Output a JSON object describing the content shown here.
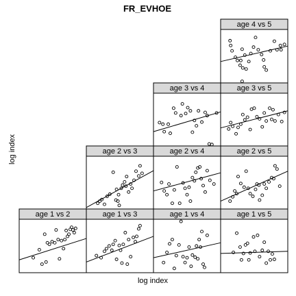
{
  "chart_data": {
    "type": "scatter",
    "title": "FR_EVHOE",
    "xlabel": "log index",
    "ylabel": "log index",
    "strip_color": "#d9d9d9",
    "grid": false,
    "panels": [
      {
        "label": "age 4 vs 5",
        "row": 0,
        "col": 3,
        "points": [
          [
            0.14,
            0.79
          ],
          [
            0.15,
            0.7
          ],
          [
            0.17,
            0.6
          ],
          [
            0.22,
            0.48
          ],
          [
            0.25,
            0.42
          ],
          [
            0.29,
            0.33
          ],
          [
            0.32,
            0.63
          ],
          [
            0.36,
            0.52
          ],
          [
            0.3,
            0.42
          ],
          [
            0.33,
            0.28
          ],
          [
            0.38,
            0.26
          ],
          [
            0.42,
            0.4
          ],
          [
            0.45,
            0.55
          ],
          [
            0.49,
            0.67
          ],
          [
            0.52,
            0.85
          ],
          [
            0.56,
            0.62
          ],
          [
            0.61,
            0.53
          ],
          [
            0.64,
            0.43
          ],
          [
            0.65,
            0.3
          ],
          [
            0.68,
            0.24
          ],
          [
            0.74,
            0.6
          ],
          [
            0.8,
            0.78
          ],
          [
            0.84,
            0.62
          ],
          [
            0.89,
            0.7
          ],
          [
            0.9,
            0.62
          ],
          [
            0.95,
            0.72
          ],
          [
            0.32,
            0.03
          ]
        ],
        "line": [
          [
            0.0,
            0.4
          ],
          [
            1.0,
            0.69
          ]
        ]
      },
      {
        "label": "age 3 vs 4",
        "row": 1,
        "col": 2,
        "points": [
          [
            0.09,
            0.45
          ],
          [
            0.14,
            0.42
          ],
          [
            0.16,
            0.28
          ],
          [
            0.22,
            0.42
          ],
          [
            0.25,
            0.25
          ],
          [
            0.3,
            0.72
          ],
          [
            0.33,
            0.63
          ],
          [
            0.41,
            0.58
          ],
          [
            0.43,
            0.8
          ],
          [
            0.48,
            0.62
          ],
          [
            0.51,
            0.73
          ],
          [
            0.55,
            0.67
          ],
          [
            0.58,
            0.27
          ],
          [
            0.61,
            0.49
          ],
          [
            0.64,
            0.39
          ],
          [
            0.67,
            0.67
          ],
          [
            0.72,
            0.46
          ],
          [
            0.77,
            0.64
          ],
          [
            0.8,
            0.58
          ],
          [
            0.83,
            0.05
          ],
          [
            0.87,
            0.04
          ],
          [
            0.94,
            0.63
          ]
        ],
        "line": [
          [
            0.0,
            0.28
          ],
          [
            1.0,
            0.65
          ]
        ]
      },
      {
        "label": "age 3 vs 5",
        "row": 1,
        "col": 3,
        "points": [
          [
            0.12,
            0.33
          ],
          [
            0.15,
            0.45
          ],
          [
            0.18,
            0.38
          ],
          [
            0.23,
            0.24
          ],
          [
            0.26,
            0.36
          ],
          [
            0.3,
            0.42
          ],
          [
            0.33,
            0.6
          ],
          [
            0.36,
            0.5
          ],
          [
            0.4,
            0.55
          ],
          [
            0.44,
            0.32
          ],
          [
            0.46,
            0.7
          ],
          [
            0.5,
            0.72
          ],
          [
            0.54,
            0.56
          ],
          [
            0.58,
            0.52
          ],
          [
            0.62,
            0.37
          ],
          [
            0.65,
            0.63
          ],
          [
            0.68,
            0.48
          ],
          [
            0.73,
            0.72
          ],
          [
            0.76,
            0.51
          ],
          [
            0.78,
            0.69
          ],
          [
            0.81,
            0.48
          ],
          [
            0.86,
            0.6
          ],
          [
            0.91,
            0.47
          ],
          [
            0.95,
            0.64
          ]
        ],
        "line": [
          [
            0.0,
            0.35
          ],
          [
            1.0,
            0.67
          ]
        ]
      },
      {
        "label": "age 2 vs 3",
        "row": 2,
        "col": 1,
        "points": [
          [
            0.17,
            0.12
          ],
          [
            0.2,
            0.16
          ],
          [
            0.23,
            0.19
          ],
          [
            0.27,
            0.1
          ],
          [
            0.31,
            0.25
          ],
          [
            0.35,
            0.29
          ],
          [
            0.4,
            0.7
          ],
          [
            0.44,
            0.18
          ],
          [
            0.45,
            0.38
          ],
          [
            0.48,
            0.28
          ],
          [
            0.49,
            0.08
          ],
          [
            0.52,
            0.4
          ],
          [
            0.54,
            0.46
          ],
          [
            0.57,
            0.52
          ],
          [
            0.59,
            0.44
          ],
          [
            0.6,
            0.62
          ],
          [
            0.63,
            0.33
          ],
          [
            0.66,
            0.48
          ],
          [
            0.68,
            0.4
          ],
          [
            0.71,
            0.55
          ],
          [
            0.74,
            0.72
          ],
          [
            0.78,
            0.63
          ],
          [
            0.8,
            0.82
          ],
          [
            0.83,
            0.68
          ],
          [
            0.47,
            0.16
          ]
        ],
        "line": [
          [
            0.0,
            0.04
          ],
          [
            1.0,
            0.73
          ]
        ]
      },
      {
        "label": "age 2 vs 4",
        "row": 2,
        "col": 2,
        "points": [
          [
            0.12,
            0.51
          ],
          [
            0.16,
            0.35
          ],
          [
            0.2,
            0.28
          ],
          [
            0.23,
            0.48
          ],
          [
            0.28,
            0.12
          ],
          [
            0.31,
            0.37
          ],
          [
            0.35,
            0.8
          ],
          [
            0.39,
            0.12
          ],
          [
            0.44,
            0.5
          ],
          [
            0.47,
            0.4
          ],
          [
            0.5,
            0.28
          ],
          [
            0.53,
            0.42
          ],
          [
            0.55,
            0.16
          ],
          [
            0.58,
            0.6
          ],
          [
            0.61,
            0.54
          ],
          [
            0.63,
            0.7
          ],
          [
            0.66,
            0.78
          ],
          [
            0.69,
            0.8
          ],
          [
            0.71,
            0.58
          ],
          [
            0.74,
            0.45
          ],
          [
            0.77,
            0.33
          ],
          [
            0.8,
            0.73
          ],
          [
            0.84,
            0.55
          ],
          [
            0.9,
            0.48
          ]
        ],
        "line": [
          [
            0.0,
            0.35
          ],
          [
            1.0,
            0.69
          ]
        ]
      },
      {
        "label": "age 2 vs 5",
        "row": 2,
        "col": 3,
        "points": [
          [
            0.14,
            0.16
          ],
          [
            0.18,
            0.24
          ],
          [
            0.21,
            0.35
          ],
          [
            0.24,
            0.3
          ],
          [
            0.26,
            0.62
          ],
          [
            0.3,
            0.49
          ],
          [
            0.35,
            0.42
          ],
          [
            0.38,
            0.72
          ],
          [
            0.41,
            0.4
          ],
          [
            0.44,
            0.3
          ],
          [
            0.48,
            0.25
          ],
          [
            0.52,
            0.38
          ],
          [
            0.54,
            0.48
          ],
          [
            0.57,
            0.46
          ],
          [
            0.58,
            0.18
          ],
          [
            0.62,
            0.27
          ],
          [
            0.65,
            0.48
          ],
          [
            0.68,
            0.4
          ],
          [
            0.72,
            0.52
          ],
          [
            0.76,
            0.6
          ],
          [
            0.79,
            0.58
          ],
          [
            0.81,
            0.82
          ],
          [
            0.84,
            0.76
          ],
          [
            0.88,
            0.44
          ]
        ],
        "line": [
          [
            0.0,
            0.16
          ],
          [
            1.0,
            0.72
          ]
        ]
      },
      {
        "label": "age 1 vs 2",
        "row": 3,
        "col": 0,
        "points": [
          [
            0.21,
            0.28
          ],
          [
            0.3,
            0.43
          ],
          [
            0.34,
            0.16
          ],
          [
            0.38,
            0.72
          ],
          [
            0.4,
            0.2
          ],
          [
            0.42,
            0.56
          ],
          [
            0.45,
            0.53
          ],
          [
            0.49,
            0.58
          ],
          [
            0.53,
            0.56
          ],
          [
            0.55,
            0.8
          ],
          [
            0.58,
            0.62
          ],
          [
            0.6,
            0.26
          ],
          [
            0.63,
            0.6
          ],
          [
            0.66,
            0.45
          ],
          [
            0.68,
            0.62
          ],
          [
            0.7,
            0.79
          ],
          [
            0.72,
            0.68
          ],
          [
            0.74,
            0.72
          ],
          [
            0.76,
            0.81
          ],
          [
            0.78,
            0.85
          ],
          [
            0.8,
            0.8
          ],
          [
            0.82,
            0.75
          ],
          [
            0.84,
            0.83
          ]
        ],
        "line": [
          [
            0.0,
            0.24
          ],
          [
            1.0,
            0.64
          ]
        ]
      },
      {
        "label": "age 1 vs 3",
        "row": 3,
        "col": 1,
        "points": [
          [
            0.15,
            0.32
          ],
          [
            0.22,
            0.28
          ],
          [
            0.27,
            0.4
          ],
          [
            0.3,
            0.45
          ],
          [
            0.34,
            0.5
          ],
          [
            0.38,
            0.42
          ],
          [
            0.4,
            0.53
          ],
          [
            0.43,
            0.6
          ],
          [
            0.45,
            0.25
          ],
          [
            0.49,
            0.51
          ],
          [
            0.51,
            0.42
          ],
          [
            0.53,
            0.18
          ],
          [
            0.55,
            0.53
          ],
          [
            0.58,
            0.75
          ],
          [
            0.61,
            0.16
          ],
          [
            0.63,
            0.62
          ],
          [
            0.66,
            0.3
          ],
          [
            0.7,
            0.66
          ],
          [
            0.73,
            0.58
          ],
          [
            0.75,
            0.68
          ],
          [
            0.78,
            0.82
          ],
          [
            0.8,
            0.88
          ]
        ],
        "line": [
          [
            0.0,
            0.2
          ],
          [
            1.0,
            0.68
          ]
        ]
      },
      {
        "label": "age 1 vs 4",
        "row": 3,
        "col": 2,
        "points": [
          [
            0.15,
            0.19
          ],
          [
            0.2,
            0.38
          ],
          [
            0.24,
            0.54
          ],
          [
            0.28,
            0.62
          ],
          [
            0.31,
            0.08
          ],
          [
            0.34,
            0.32
          ],
          [
            0.38,
            0.52
          ],
          [
            0.41,
            0.96
          ],
          [
            0.44,
            0.3
          ],
          [
            0.47,
            0.19
          ],
          [
            0.5,
            0.28
          ],
          [
            0.53,
            0.48
          ],
          [
            0.56,
            0.12
          ],
          [
            0.58,
            0.33
          ],
          [
            0.62,
            0.29
          ],
          [
            0.64,
            0.5
          ],
          [
            0.66,
            0.26
          ],
          [
            0.68,
            0.62
          ],
          [
            0.7,
            0.48
          ],
          [
            0.72,
            0.77
          ],
          [
            0.74,
            0.16
          ],
          [
            0.76,
            0.1
          ],
          [
            0.8,
            0.7
          ]
        ],
        "line": [
          [
            0.0,
            0.28
          ],
          [
            1.0,
            0.56
          ]
        ]
      },
      {
        "label": "age 1 vs 5",
        "row": 3,
        "col": 3,
        "points": [
          [
            0.19,
            0.38
          ],
          [
            0.24,
            0.74
          ],
          [
            0.29,
            0.48
          ],
          [
            0.31,
            0.24
          ],
          [
            0.34,
            0.36
          ],
          [
            0.37,
            0.52
          ],
          [
            0.4,
            0.55
          ],
          [
            0.42,
            0.24
          ],
          [
            0.44,
            0.37
          ],
          [
            0.49,
            0.67
          ],
          [
            0.51,
            0.4
          ],
          [
            0.55,
            0.7
          ],
          [
            0.58,
            0.3
          ],
          [
            0.62,
            0.42
          ],
          [
            0.65,
            0.57
          ],
          [
            0.68,
            0.18
          ],
          [
            0.71,
            0.4
          ],
          [
            0.74,
            0.24
          ],
          [
            0.77,
            0.35
          ],
          [
            0.8,
            0.25
          ]
        ],
        "line": [
          [
            0.0,
            0.36
          ],
          [
            1.0,
            0.4
          ]
        ]
      }
    ]
  }
}
